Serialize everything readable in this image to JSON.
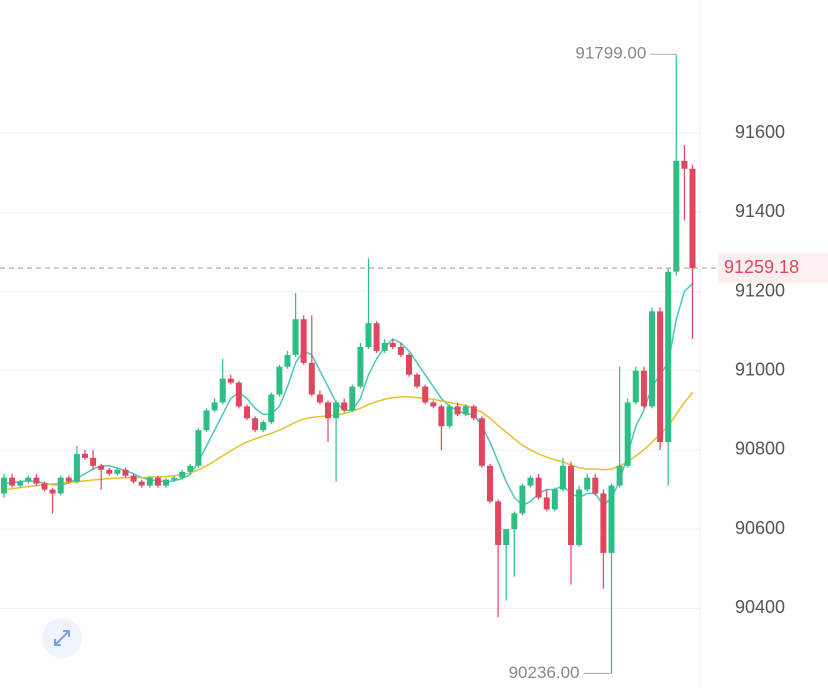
{
  "chart_data": {
    "type": "candlestick",
    "ylim": [
      90199,
      91936
    ],
    "yticks": [
      90400,
      90600,
      90800,
      91000,
      91200,
      91400,
      91600
    ],
    "grid": true,
    "up_color": "#2ebd85",
    "down_color": "#e0475f",
    "open": [
      90690,
      90730,
      90710,
      90720,
      90730,
      90715,
      90700,
      90690,
      90730,
      90720,
      90790,
      90780,
      90760,
      90750,
      90740,
      90750,
      90735,
      90720,
      90710,
      90730,
      90710,
      90725,
      90730,
      90745,
      90760,
      90850,
      90900,
      90920,
      90980,
      90970,
      90910,
      90880,
      90850,
      90870,
      90940,
      91010,
      91040,
      91130,
      91020,
      90940,
      90920,
      90880,
      90920,
      90900,
      90960,
      91060,
      91120,
      91050,
      91070,
      91060,
      91040,
      90990,
      90960,
      90920,
      90910,
      90860,
      90910,
      90890,
      90910,
      90880,
      90760,
      90670,
      90560,
      90600,
      90640,
      90710,
      90730,
      90680,
      90650,
      90700,
      90760,
      90560,
      90700,
      90730,
      90690,
      90540,
      90710,
      90760,
      90920,
      91000,
      90910,
      91150,
      90820,
      91250,
      91530,
      91510
    ],
    "high": [
      90740,
      90740,
      90725,
      90735,
      90740,
      90720,
      90705,
      90735,
      90735,
      90810,
      90800,
      90800,
      90765,
      90755,
      90755,
      90755,
      90740,
      90725,
      90735,
      90735,
      90730,
      90735,
      90750,
      90765,
      90855,
      90905,
      90930,
      91030,
      90990,
      90975,
      90915,
      90885,
      90875,
      90945,
      91015,
      91050,
      91196,
      91140,
      91140,
      90950,
      90925,
      90925,
      90930,
      90965,
      91070,
      91284,
      91125,
      91080,
      91080,
      91070,
      91045,
      90995,
      90965,
      90925,
      90915,
      90915,
      90920,
      90915,
      90915,
      90885,
      90765,
      90675,
      90600,
      90645,
      90715,
      90735,
      90740,
      90700,
      90705,
      90780,
      90770,
      90710,
      90740,
      90740,
      90700,
      90715,
      91010,
      90930,
      91010,
      91010,
      91160,
      91160,
      91260,
      91799,
      91570,
      91520
    ],
    "low": [
      90680,
      90705,
      90705,
      90715,
      90710,
      90695,
      90640,
      90685,
      90715,
      90715,
      90775,
      90750,
      90700,
      90735,
      90735,
      90730,
      90715,
      90705,
      90705,
      90705,
      90705,
      90720,
      90725,
      90740,
      90755,
      90845,
      90895,
      90915,
      90965,
      90905,
      90875,
      90845,
      90845,
      90865,
      90935,
      91005,
      91035,
      91015,
      90935,
      90915,
      90820,
      90720,
      90895,
      90895,
      90955,
      91055,
      91045,
      91045,
      91055,
      91035,
      90985,
      90955,
      90915,
      90905,
      90800,
      90855,
      90885,
      90885,
      90875,
      90755,
      90665,
      90378,
      90420,
      90480,
      90635,
      90705,
      90675,
      90645,
      90645,
      90695,
      90460,
      90555,
      90695,
      90685,
      90450,
      90236,
      90705,
      90755,
      90915,
      90905,
      90905,
      90800,
      90710,
      91240,
      91380,
      91080
    ],
    "close": [
      90730,
      90710,
      90720,
      90730,
      90715,
      90700,
      90690,
      90730,
      90720,
      90790,
      90780,
      90760,
      90750,
      90740,
      90750,
      90735,
      90720,
      90710,
      90730,
      90710,
      90725,
      90730,
      90745,
      90760,
      90850,
      90900,
      90920,
      90980,
      90970,
      90910,
      90880,
      90850,
      90870,
      90940,
      91010,
      91040,
      91130,
      91020,
      90940,
      90920,
      90880,
      90920,
      90900,
      90960,
      91060,
      91120,
      91050,
      91070,
      91060,
      91040,
      90990,
      90960,
      90920,
      90910,
      90860,
      90910,
      90890,
      90910,
      90880,
      90760,
      90670,
      90560,
      90600,
      90640,
      90710,
      90730,
      90680,
      90650,
      90700,
      90760,
      90560,
      90700,
      90730,
      90690,
      90540,
      90710,
      90760,
      90920,
      91000,
      90910,
      91150,
      90820,
      91250,
      91530,
      91510,
      91259
    ],
    "lines": [
      {
        "color": "#4cc7c0",
        "values": [
          90715,
          90718,
          90720,
          90722,
          90720,
          90716,
          90712,
          90712,
          90716,
          90728,
          90740,
          90752,
          90760,
          90760,
          90754,
          90748,
          90740,
          90730,
          90725,
          90722,
          90720,
          90722,
          90728,
          90738,
          90770,
          90810,
          90850,
          90890,
          90930,
          90945,
          90930,
          90905,
          90890,
          90890,
          90910,
          90960,
          91020,
          91050,
          91040,
          91000,
          90960,
          90920,
          90900,
          90900,
          90930,
          90990,
          91030,
          91060,
          91080,
          91070,
          91050,
          91020,
          90990,
          90960,
          90930,
          90910,
          90900,
          90890,
          90890,
          90860,
          90820,
          90770,
          90720,
          90680,
          90660,
          90670,
          90690,
          90700,
          90700,
          90710,
          90690,
          90680,
          90690,
          90690,
          90660,
          90680,
          90720,
          90790,
          90860,
          90900,
          90960,
          90990,
          91020,
          91130,
          91200,
          91220
        ]
      },
      {
        "color": "#e6c12e",
        "values": [
          90700,
          90702,
          90705,
          90708,
          90710,
          90712,
          90714,
          90716,
          90718,
          90720,
          90722,
          90724,
          90726,
          90728,
          90729,
          90730,
          90730,
          90730,
          90731,
          90732,
          90733,
          90735,
          90738,
          90742,
          90750,
          90760,
          90772,
          90785,
          90798,
          90810,
          90820,
          90828,
          90835,
          90842,
          90850,
          90860,
          90870,
          90878,
          90882,
          90884,
          90886,
          90888,
          90892,
          90898,
          90905,
          90915,
          90922,
          90928,
          90932,
          90934,
          90934,
          90932,
          90930,
          90928,
          90924,
          90920,
          90916,
          90912,
          90905,
          90895,
          90880,
          90862,
          90845,
          90828,
          90812,
          90800,
          90790,
          90782,
          90775,
          90770,
          90762,
          90755,
          90752,
          90752,
          90750,
          90752,
          90760,
          90770,
          90785,
          90800,
          90820,
          90840,
          90860,
          90890,
          90920,
          90945
        ]
      }
    ],
    "high_label": {
      "value": 91799,
      "label": "91799.00"
    },
    "low_label": {
      "value": 90236,
      "label": "90236.00"
    },
    "last_price": {
      "value": 91259.18,
      "label": "91259.18"
    }
  }
}
